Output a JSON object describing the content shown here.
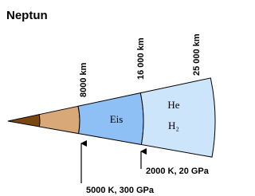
{
  "title": "Neptun",
  "depths": [
    "8000 km",
    "16 000 km",
    "25 000 km"
  ],
  "layers": [
    "Eis",
    "He",
    "H₂"
  ],
  "conditions": [
    "2000 K, 20 GPa",
    "5000 K, 300 GPa"
  ]
}
